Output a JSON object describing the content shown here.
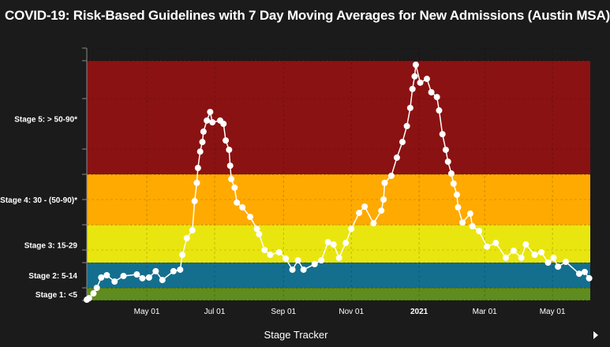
{
  "chart_data": {
    "type": "scatter",
    "title": "COVID-19: Risk-Based Guidelines with 7 Day Moving Averages for New Admissions (Austin MSA)",
    "xlabel": "",
    "ylabel": "",
    "xlim": [
      "2020-03-08",
      "2021-06-04"
    ],
    "ylim": [
      0,
      100
    ],
    "grid": true,
    "x_ticks": [
      {
        "date": "2020-05-01",
        "label": "May 01",
        "bold": false
      },
      {
        "date": "2020-07-01",
        "label": "Jul 01",
        "bold": false
      },
      {
        "date": "2020-09-01",
        "label": "Sep 01",
        "bold": false
      },
      {
        "date": "2020-11-01",
        "label": "Nov 01",
        "bold": false
      },
      {
        "date": "2021-01-01",
        "label": "2021",
        "bold": true
      },
      {
        "date": "2021-03-01",
        "label": "Mar 01",
        "bold": false
      },
      {
        "date": "2021-05-01",
        "label": "May 01",
        "bold": false
      }
    ],
    "bands": [
      {
        "label": "Stage 1: <5",
        "from": 0,
        "to": 5,
        "label_at": 2.5,
        "color": "#5f8c1e"
      },
      {
        "label": "Stage 2: 5-14",
        "from": 5,
        "to": 15,
        "label_at": 10,
        "color": "#146f8f"
      },
      {
        "label": "Stage 3: 15-29",
        "from": 15,
        "to": 30,
        "label_at": 22,
        "color": "#e9e60f"
      },
      {
        "label": "Stage 4: 30 - (50-90)*",
        "from": 30,
        "to": 50,
        "label_at": 40,
        "color": "#ffaa00"
      },
      {
        "label": "Stage 5: > 50-90*",
        "from": 50,
        "to": 95,
        "label_at": 72,
        "color": "#8b1212"
      }
    ],
    "y_ticks": [
      0,
      5,
      15,
      20,
      30,
      40,
      50,
      60,
      80,
      95,
      100
    ],
    "series": [
      {
        "color": "#ffffff",
        "points": [
          [
            "2020-03-08",
            0.3
          ],
          [
            "2020-03-10",
            0.9
          ],
          [
            "2020-03-14",
            2.8
          ],
          [
            "2020-03-17",
            5
          ],
          [
            "2020-03-21",
            9.1
          ],
          [
            "2020-03-26",
            10
          ],
          [
            "2020-04-02",
            7.5
          ],
          [
            "2020-04-10",
            9.7
          ],
          [
            "2020-04-22",
            10.3
          ],
          [
            "2020-04-27",
            8.8
          ],
          [
            "2020-05-03",
            9.1
          ],
          [
            "2020-05-09",
            11.6
          ],
          [
            "2020-05-15",
            8.1
          ],
          [
            "2020-05-25",
            11.6
          ],
          [
            "2020-05-31",
            12.2
          ],
          [
            "2020-06-02",
            18.1
          ],
          [
            "2020-06-06",
            24.7
          ],
          [
            "2020-06-11",
            27.8
          ],
          [
            "2020-06-13",
            39.4
          ],
          [
            "2020-06-15",
            46.6
          ],
          [
            "2020-06-16",
            52.5
          ],
          [
            "2020-06-18",
            59
          ],
          [
            "2020-06-20",
            62.8
          ],
          [
            "2020-06-21",
            66.9
          ],
          [
            "2020-06-24",
            71.3
          ],
          [
            "2020-06-27",
            74.7
          ],
          [
            "2020-06-29",
            70.6
          ],
          [
            "2020-07-06",
            71.3
          ],
          [
            "2020-07-09",
            70
          ],
          [
            "2020-07-11",
            63.4
          ],
          [
            "2020-07-14",
            59.7
          ],
          [
            "2020-07-15",
            53.4
          ],
          [
            "2020-07-16",
            48.1
          ],
          [
            "2020-07-19",
            44.7
          ],
          [
            "2020-07-21",
            38.8
          ],
          [
            "2020-07-26",
            36.9
          ],
          [
            "2020-08-02",
            33.1
          ],
          [
            "2020-08-08",
            28.4
          ],
          [
            "2020-08-10",
            26.3
          ],
          [
            "2020-08-15",
            20
          ],
          [
            "2020-08-20",
            18.1
          ],
          [
            "2020-08-28",
            19.1
          ],
          [
            "2020-09-03",
            16.6
          ],
          [
            "2020-09-09",
            12.2
          ],
          [
            "2020-09-14",
            15.9
          ],
          [
            "2020-09-19",
            12.2
          ],
          [
            "2020-09-29",
            14.4
          ],
          [
            "2020-10-05",
            15.9
          ],
          [
            "2020-10-11",
            23.1
          ],
          [
            "2020-10-16",
            22.2
          ],
          [
            "2020-10-21",
            16.9
          ],
          [
            "2020-10-27",
            22.8
          ],
          [
            "2020-11-01",
            28.4
          ],
          [
            "2020-11-08",
            34.7
          ],
          [
            "2020-11-13",
            37.2
          ],
          [
            "2020-11-21",
            30.6
          ],
          [
            "2020-11-28",
            35.6
          ],
          [
            "2020-11-30",
            40
          ],
          [
            "2020-12-01",
            46.6
          ],
          [
            "2020-12-07",
            49.4
          ],
          [
            "2020-12-12",
            56.6
          ],
          [
            "2020-12-17",
            62.8
          ],
          [
            "2020-12-21",
            69.1
          ],
          [
            "2020-12-24",
            76.3
          ],
          [
            "2020-12-26",
            83.8
          ],
          [
            "2020-12-28",
            88.8
          ],
          [
            "2020-12-29",
            93.4
          ],
          [
            "2021-01-02",
            86.3
          ],
          [
            "2021-01-08",
            87.8
          ],
          [
            "2021-01-12",
            82.5
          ],
          [
            "2021-01-17",
            80.6
          ],
          [
            "2021-01-19",
            75.3
          ],
          [
            "2021-01-22",
            65.9
          ],
          [
            "2021-01-25",
            59.7
          ],
          [
            "2021-01-27",
            55
          ],
          [
            "2021-01-30",
            50.3
          ],
          [
            "2021-02-01",
            46.3
          ],
          [
            "2021-02-04",
            41.9
          ],
          [
            "2021-02-05",
            36.9
          ],
          [
            "2021-02-09",
            30.9
          ],
          [
            "2021-02-16",
            34.4
          ],
          [
            "2021-02-18",
            29.4
          ],
          [
            "2021-02-24",
            27.5
          ],
          [
            "2021-03-03",
            21.3
          ],
          [
            "2021-03-11",
            22.8
          ],
          [
            "2021-03-20",
            16.9
          ],
          [
            "2021-03-27",
            19.7
          ],
          [
            "2021-04-03",
            16.9
          ],
          [
            "2021-04-07",
            22.2
          ],
          [
            "2021-04-15",
            18.1
          ],
          [
            "2021-04-21",
            19.1
          ],
          [
            "2021-04-27",
            15
          ],
          [
            "2021-05-02",
            16.9
          ],
          [
            "2021-05-06",
            13.4
          ],
          [
            "2021-05-13",
            15.3
          ],
          [
            "2021-05-25",
            10.6
          ],
          [
            "2021-05-30",
            11.3
          ],
          [
            "2021-06-03",
            8.8
          ]
        ]
      }
    ]
  },
  "footer": {
    "tracker_label": "Stage Tracker"
  }
}
